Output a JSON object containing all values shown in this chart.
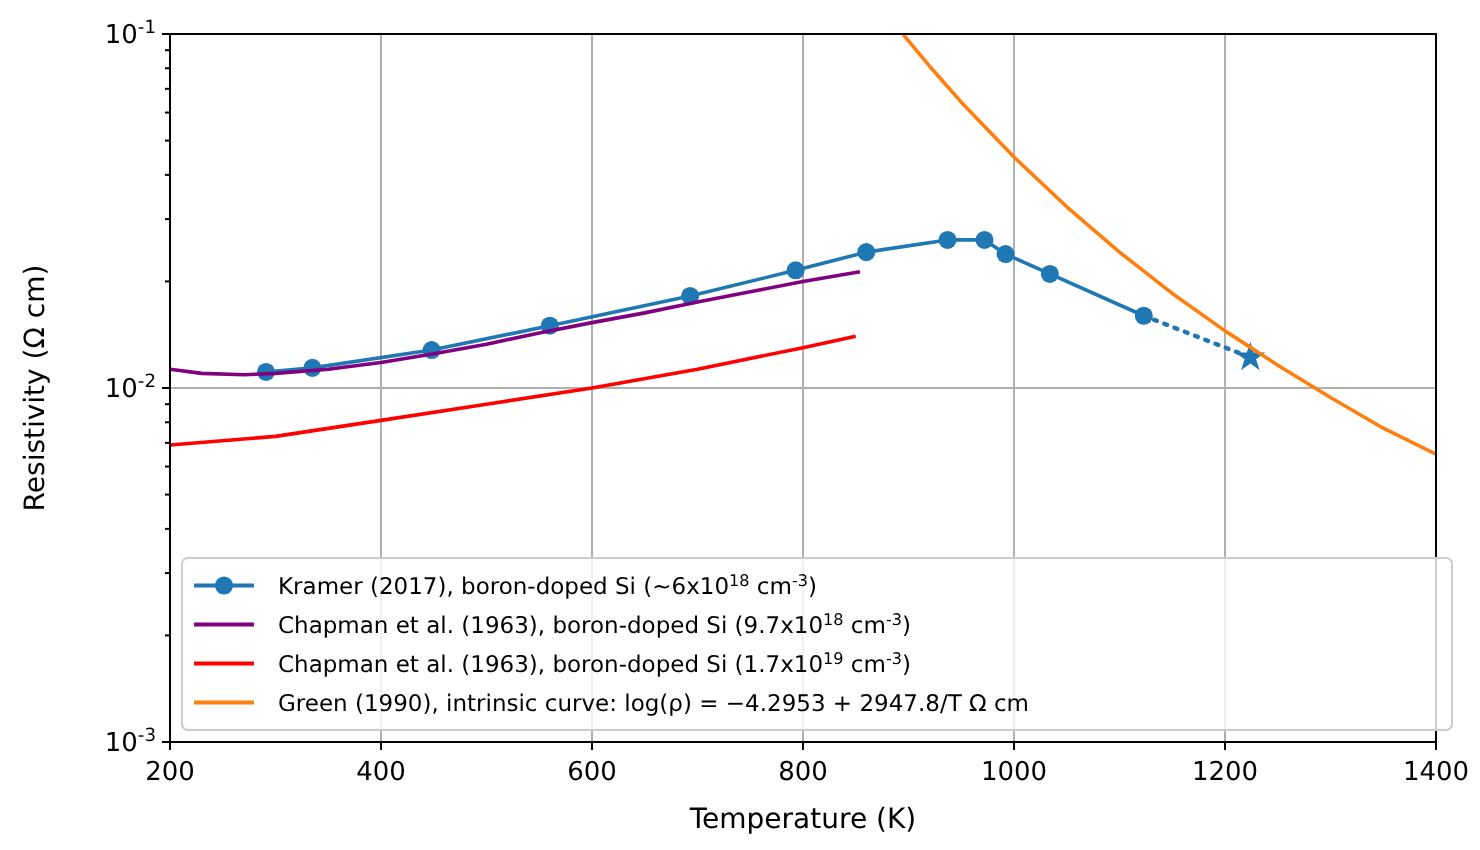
{
  "chart_data": {
    "type": "line",
    "xlabel": "Temperature (K)",
    "ylabel": "Resistivity (Ω cm)",
    "log": "y",
    "grid": true,
    "legend": "bottom left",
    "xlim": [
      200,
      1400
    ],
    "xticks": [
      200,
      400,
      600,
      800,
      1000,
      1200,
      1400
    ],
    "ylim": [
      0.001,
      0.1
    ],
    "yticks": [
      {
        "value": 0.001,
        "label": "10$^{-3}$"
      },
      {
        "value": 0.002,
        "label": null
      },
      {
        "value": 0.003,
        "label": null
      },
      {
        "value": 0.004,
        "label": null
      },
      {
        "value": 0.005,
        "label": null
      },
      {
        "value": 0.006,
        "label": null
      },
      {
        "value": 0.007,
        "label": null
      },
      {
        "value": 0.008,
        "label": null
      },
      {
        "value": 0.009,
        "label": null
      },
      {
        "value": 0.01,
        "label": "10$^{-2}$"
      },
      {
        "value": 0.02,
        "label": null
      },
      {
        "value": 0.03,
        "label": null
      },
      {
        "value": 0.04,
        "label": null
      },
      {
        "value": 0.05,
        "label": null
      },
      {
        "value": 0.06,
        "label": null
      },
      {
        "value": 0.07,
        "label": null
      },
      {
        "value": 0.08,
        "label": null
      },
      {
        "value": 0.09,
        "label": null
      },
      {
        "value": 0.1,
        "label": "10$^{-1}$"
      }
    ],
    "series": [
      {
        "name": "Kramer (2017), boron-doped Si  (~6x10$^{18}$ cm$^{-3}$)",
        "color": "#1f77b4",
        "marker": "circle",
        "line_style": "solid",
        "x": [
          291,
          335,
          448,
          560,
          693,
          793,
          860,
          937,
          972,
          992,
          1034,
          1123
        ],
        "values": [
          0.0111,
          0.0114,
          0.0128,
          0.015,
          0.0182,
          0.0215,
          0.0242,
          0.0262,
          0.0262,
          0.0239,
          0.021,
          0.016
        ]
      },
      {
        "type": "line",
        "color": "#1f77b4",
        "marker": "none",
        "line_style": "dotted",
        "x": [
          1123,
          1224
        ],
        "values": [
          0.016,
          0.0122
        ]
      },
      {
        "type": "scatter",
        "color": "#1f77b4",
        "marker": "star",
        "x": [
          1224
        ],
        "values": [
          0.0122
        ]
      },
      {
        "name": "Chapman et al. (1963), boron-doped Si  (9.7x10$^{18}$ cm$^{-3}$)",
        "color": "#800080",
        "marker": "none",
        "line_style": "solid",
        "x": [
          200,
          230,
          270,
          300,
          350,
          400,
          450,
          500,
          550,
          600,
          650,
          700,
          750,
          800,
          854
        ],
        "values": [
          0.0113,
          0.011,
          0.0109,
          0.011,
          0.0113,
          0.0118,
          0.0125,
          0.0133,
          0.0143,
          0.0153,
          0.0163,
          0.0175,
          0.0187,
          0.02,
          0.0213
        ]
      },
      {
        "name": "Chapman et al. (1963), boron-doped Si  (1.7x10$^{19}$ cm$^{-3}$)",
        "color": "#ff0000",
        "marker": "none",
        "line_style": "solid",
        "x": [
          200,
          300,
          400,
          500,
          600,
          700,
          800,
          850
        ],
        "values": [
          0.0069,
          0.0073,
          0.0081,
          0.009,
          0.01,
          0.0113,
          0.013,
          0.014
        ]
      },
      {
        "name": "Green (1990), intrinsic curve: log(ρ) = −4.2953 + 2947.8/T  Ω cm",
        "color": "#ff7f0e",
        "marker": "none",
        "line_style": "solid",
        "x": [
          895,
          920,
          950,
          1000,
          1050,
          1100,
          1150,
          1200,
          1250,
          1300,
          1350,
          1400
        ],
        "values": [
          0.0996,
          0.0811,
          0.0642,
          0.0449,
          0.0325,
          0.0242,
          0.0185,
          0.0145,
          0.0116,
          0.0094,
          0.0077,
          0.0065
        ]
      }
    ]
  }
}
